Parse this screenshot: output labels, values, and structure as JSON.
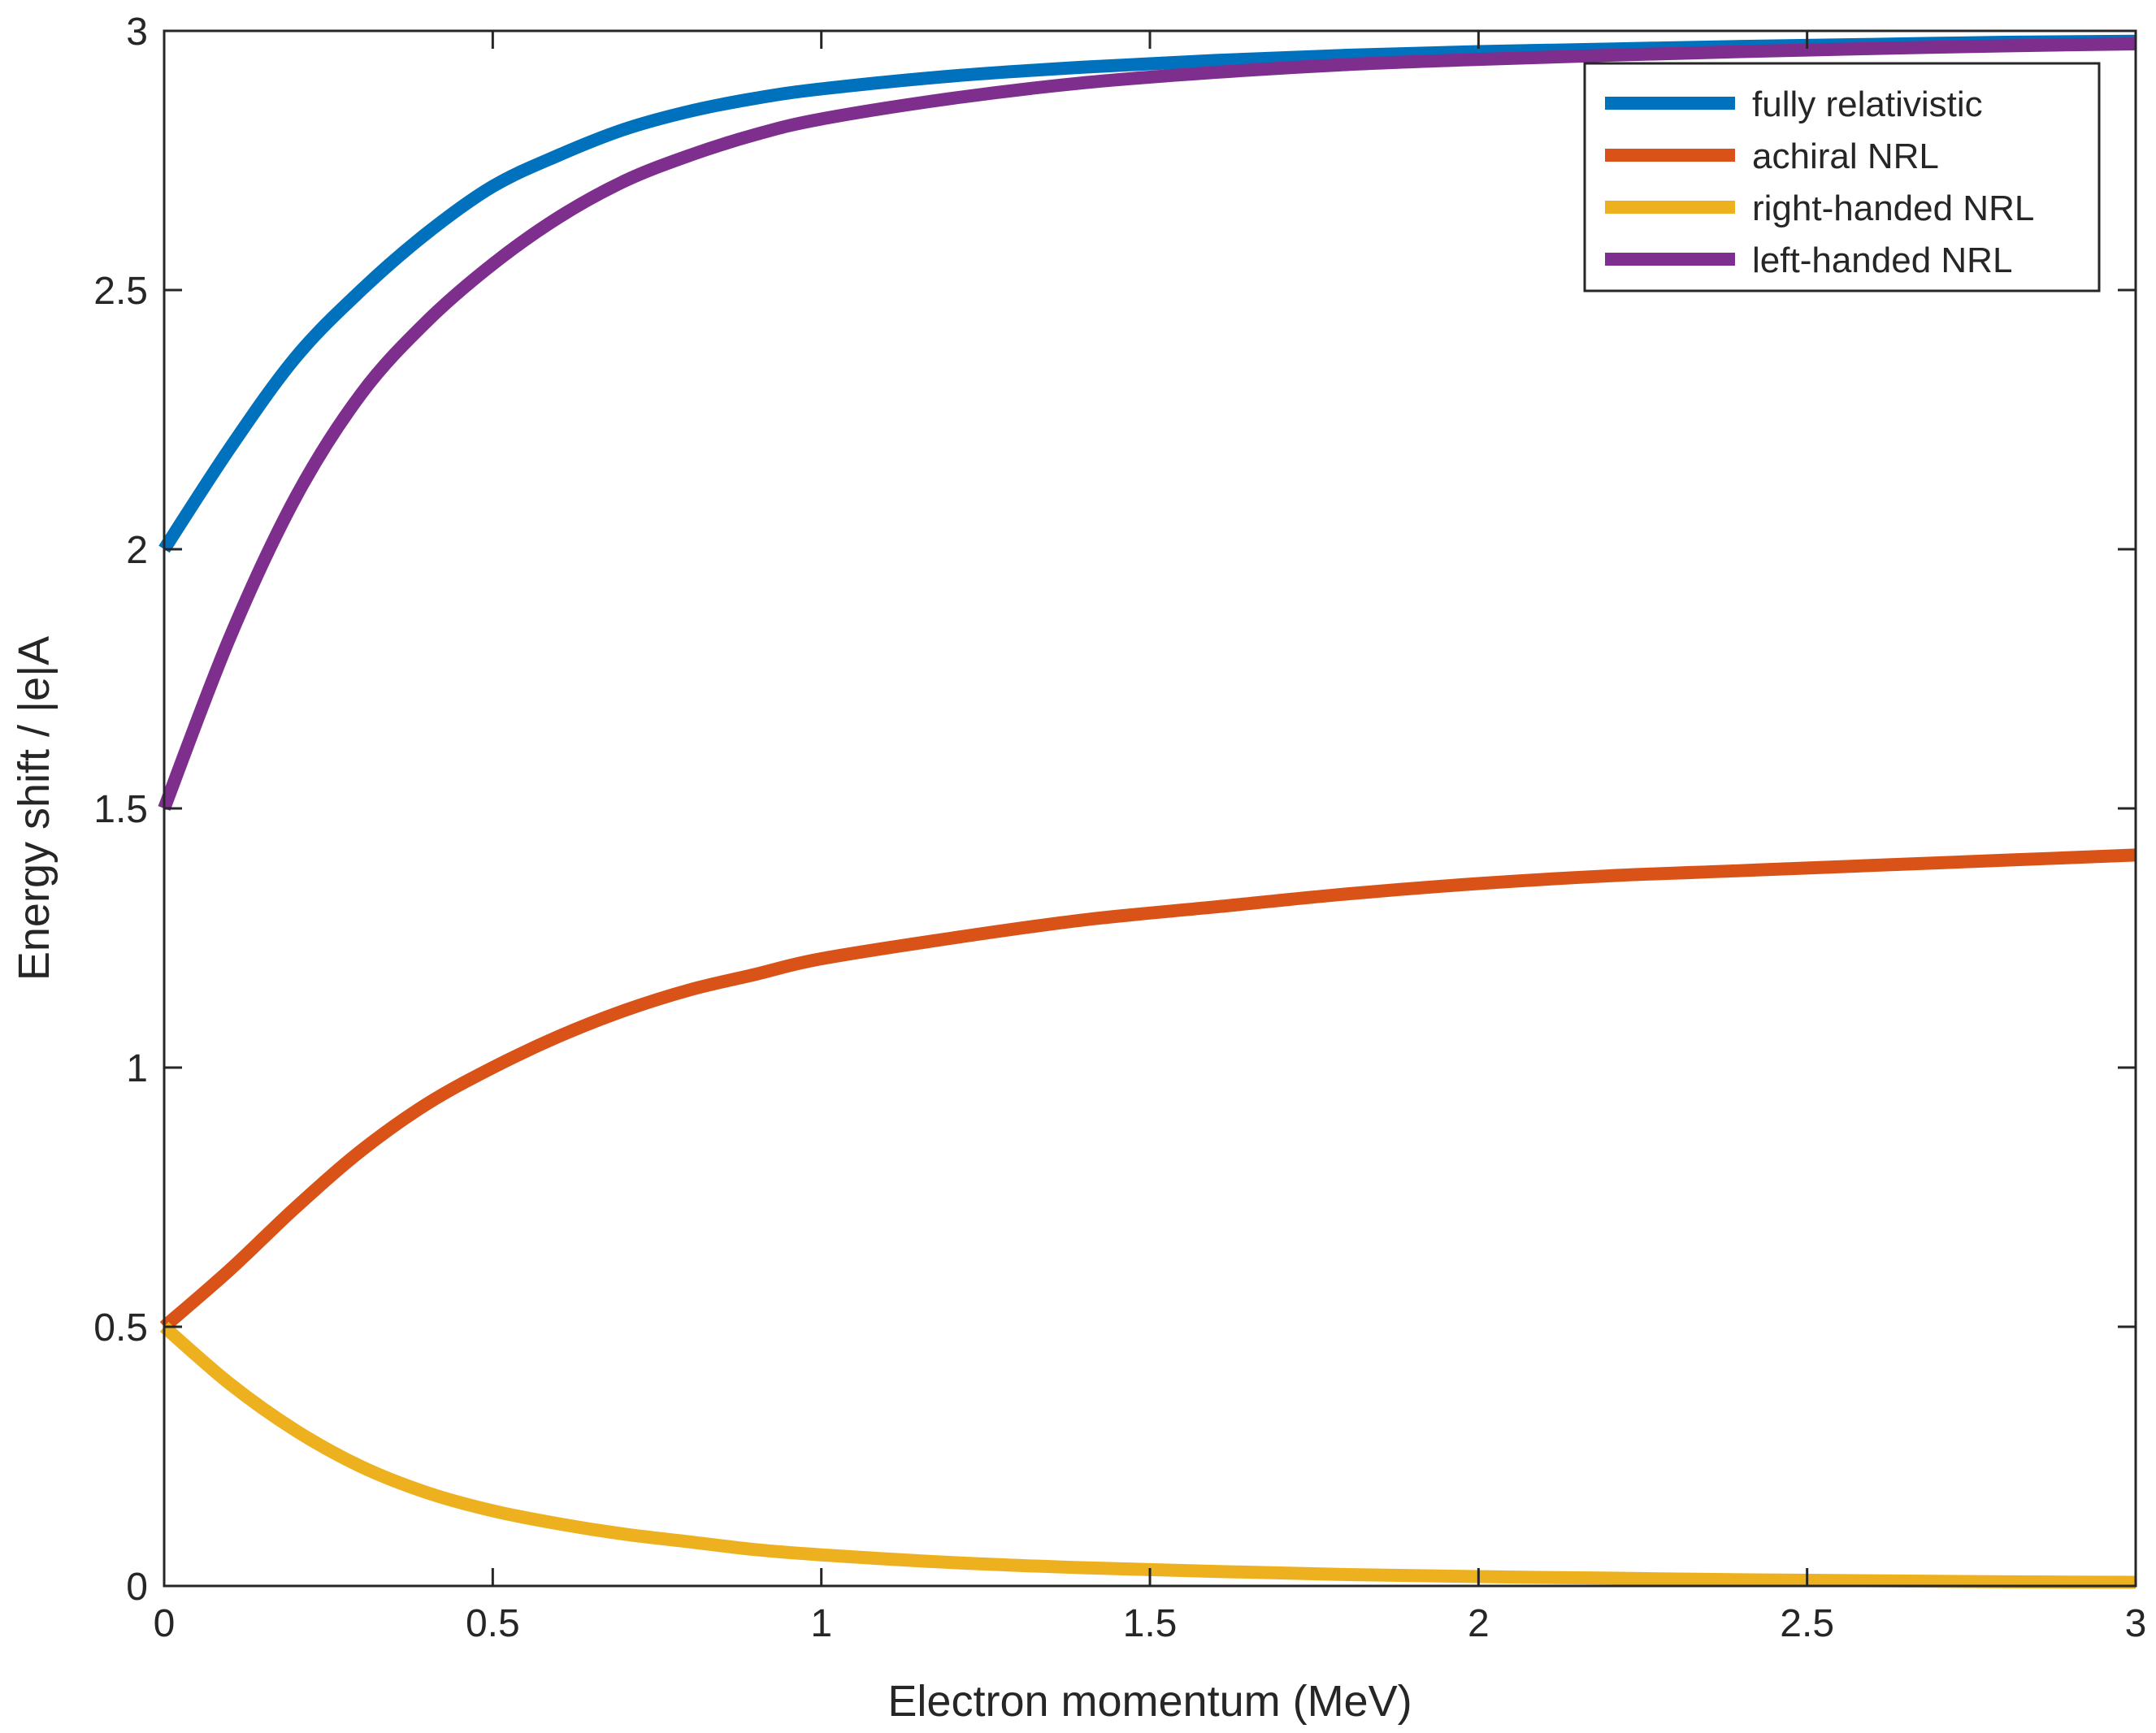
{
  "chart_data": {
    "type": "line",
    "title": "",
    "xlabel": "Electron momentum (MeV)",
    "ylabel": "Energy shift / |e|A",
    "xlim": [
      0,
      3
    ],
    "ylim": [
      0,
      3
    ],
    "xticks": [
      0,
      0.5,
      1,
      1.5,
      2,
      2.5,
      3
    ],
    "xtick_labels": [
      "0",
      "0.5",
      "1",
      "1.5",
      "2",
      "2.5",
      "3"
    ],
    "yticks": [
      0,
      0.5,
      1,
      1.5,
      2,
      2.5,
      3
    ],
    "ytick_labels": [
      "0",
      "0.5",
      "1",
      "1.5",
      "2",
      "2.5",
      "3"
    ],
    "grid": false,
    "legend_position": "top-right",
    "x": [
      0,
      0.1,
      0.2,
      0.3,
      0.4,
      0.5,
      0.6,
      0.7,
      0.8,
      0.9,
      1.0,
      1.2,
      1.4,
      1.6,
      1.8,
      2.0,
      2.2,
      2.4,
      2.6,
      2.8,
      3.0
    ],
    "series": [
      {
        "name": "fully relativistic",
        "color": "#0072BD",
        "values": [
          2.0,
          2.195,
          2.37,
          2.5,
          2.61,
          2.7,
          2.76,
          2.81,
          2.845,
          2.87,
          2.888,
          2.913,
          2.93,
          2.943,
          2.953,
          2.96,
          2.965,
          2.97,
          2.974,
          2.978,
          2.98
        ]
      },
      {
        "name": "achiral NRL",
        "color": "#D95319",
        "values": [
          0.5,
          0.61,
          0.73,
          0.84,
          0.93,
          1.0,
          1.06,
          1.11,
          1.15,
          1.18,
          1.21,
          1.25,
          1.285,
          1.31,
          1.335,
          1.355,
          1.37,
          1.38,
          1.39,
          1.4,
          1.41
        ]
      },
      {
        "name": "right-handed NRL",
        "color": "#EDB120",
        "values": [
          0.5,
          0.39,
          0.3,
          0.23,
          0.18,
          0.145,
          0.12,
          0.1,
          0.085,
          0.07,
          0.06,
          0.045,
          0.035,
          0.028,
          0.022,
          0.018,
          0.015,
          0.012,
          0.01,
          0.008,
          0.007
        ]
      },
      {
        "name": "left-handed NRL",
        "color": "#7E2F8E",
        "values": [
          1.5,
          1.83,
          2.1,
          2.3,
          2.44,
          2.55,
          2.64,
          2.71,
          2.76,
          2.8,
          2.83,
          2.87,
          2.9,
          2.92,
          2.935,
          2.945,
          2.953,
          2.96,
          2.966,
          2.971,
          2.975
        ]
      }
    ]
  }
}
